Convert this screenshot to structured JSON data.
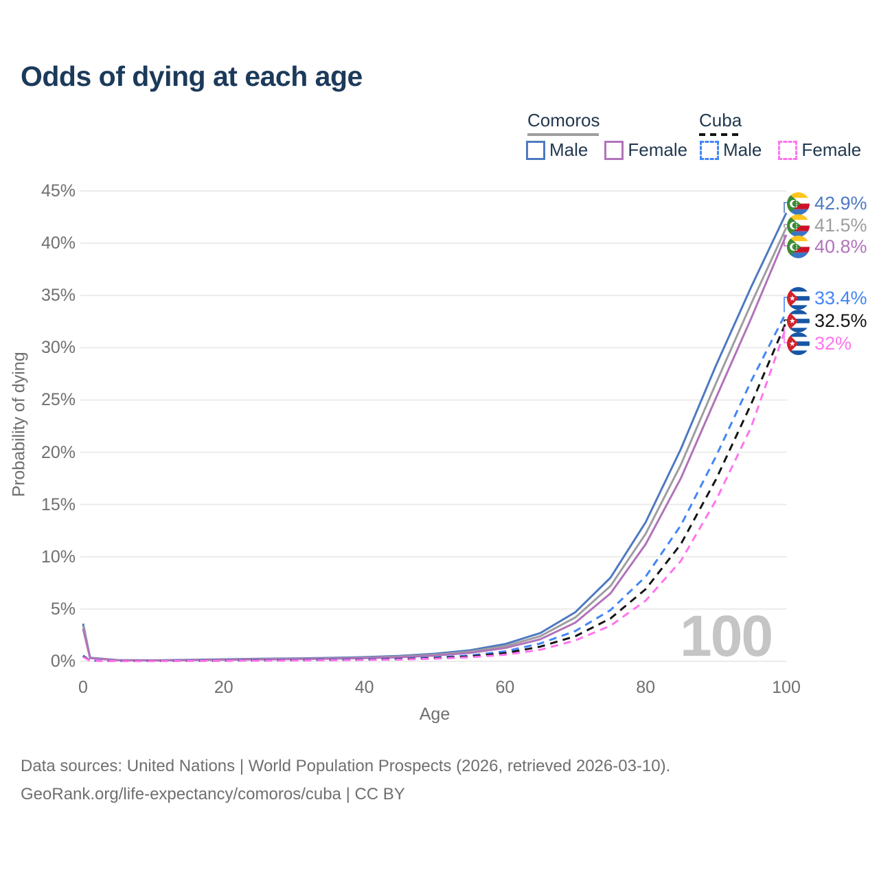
{
  "page": {
    "title": "Odds of dying at each age"
  },
  "legend": {
    "groups": [
      {
        "label": "Comoros",
        "line_style": "solid",
        "line_color": "#9e9e9e",
        "items": [
          {
            "label": "Male",
            "color": "#4d79c1"
          },
          {
            "label": "Female",
            "color": "#b173b9"
          }
        ]
      },
      {
        "label": "Cuba",
        "line_style": "dashed",
        "line_color": "#141414",
        "items": [
          {
            "label": "Male",
            "color": "#4286f5"
          },
          {
            "label": "Female",
            "color": "#ff74ee"
          }
        ]
      }
    ]
  },
  "chart_data": {
    "type": "line",
    "title": "Odds of dying at each age",
    "xlabel": "Age",
    "ylabel": "Probability of dying",
    "xlim": [
      0,
      100
    ],
    "ylim_pct": [
      0,
      45
    ],
    "x_ticks": [
      0,
      20,
      40,
      60,
      80,
      100
    ],
    "y_ticks": [
      "0%",
      "5%",
      "10%",
      "15%",
      "20%",
      "25%",
      "30%",
      "35%",
      "40%",
      "45%"
    ],
    "grid": "horizontal",
    "legend_position": "top-right",
    "watermark": "100",
    "series": [
      {
        "name": "Comoros Male",
        "country": "Comoros",
        "sex": "male",
        "color": "#4d79c1",
        "dash": "solid",
        "points": [
          [
            0,
            3.6
          ],
          [
            1,
            0.35
          ],
          [
            5,
            0.12
          ],
          [
            10,
            0.1
          ],
          [
            15,
            0.14
          ],
          [
            20,
            0.2
          ],
          [
            25,
            0.24
          ],
          [
            30,
            0.28
          ],
          [
            35,
            0.33
          ],
          [
            40,
            0.4
          ],
          [
            45,
            0.52
          ],
          [
            50,
            0.72
          ],
          [
            55,
            1.05
          ],
          [
            60,
            1.65
          ],
          [
            65,
            2.7
          ],
          [
            70,
            4.7
          ],
          [
            75,
            8.0
          ],
          [
            80,
            13.3
          ],
          [
            85,
            20.3
          ],
          [
            90,
            28.3
          ],
          [
            95,
            35.8
          ],
          [
            100,
            42.9
          ]
        ]
      },
      {
        "name": "Comoros Both sexes",
        "country": "Comoros",
        "sex": "both",
        "color": "#9e9e9e",
        "dash": "solid",
        "points": [
          [
            0,
            3.4
          ],
          [
            1,
            0.32
          ],
          [
            5,
            0.11
          ],
          [
            10,
            0.09
          ],
          [
            15,
            0.12
          ],
          [
            20,
            0.17
          ],
          [
            25,
            0.21
          ],
          [
            30,
            0.24
          ],
          [
            35,
            0.28
          ],
          [
            40,
            0.35
          ],
          [
            45,
            0.45
          ],
          [
            50,
            0.63
          ],
          [
            55,
            0.92
          ],
          [
            60,
            1.45
          ],
          [
            65,
            2.4
          ],
          [
            70,
            4.2
          ],
          [
            75,
            7.2
          ],
          [
            80,
            12.2
          ],
          [
            85,
            18.8
          ],
          [
            90,
            26.6
          ],
          [
            95,
            34.2
          ],
          [
            100,
            41.5
          ]
        ]
      },
      {
        "name": "Comoros Female",
        "country": "Comoros",
        "sex": "female",
        "color": "#b173b9",
        "dash": "solid",
        "points": [
          [
            0,
            3.1
          ],
          [
            1,
            0.3
          ],
          [
            5,
            0.1
          ],
          [
            10,
            0.08
          ],
          [
            15,
            0.11
          ],
          [
            20,
            0.15
          ],
          [
            25,
            0.18
          ],
          [
            30,
            0.21
          ],
          [
            35,
            0.24
          ],
          [
            40,
            0.3
          ],
          [
            45,
            0.39
          ],
          [
            50,
            0.55
          ],
          [
            55,
            0.8
          ],
          [
            60,
            1.27
          ],
          [
            65,
            2.1
          ],
          [
            70,
            3.7
          ],
          [
            75,
            6.5
          ],
          [
            80,
            11.2
          ],
          [
            85,
            17.5
          ],
          [
            90,
            25.2
          ],
          [
            95,
            32.8
          ],
          [
            100,
            40.8
          ]
        ]
      },
      {
        "name": "Cuba Male",
        "country": "Cuba",
        "sex": "male",
        "color": "#4286f5",
        "dash": "dashed",
        "points": [
          [
            0,
            0.55
          ],
          [
            1,
            0.05
          ],
          [
            5,
            0.03
          ],
          [
            10,
            0.03
          ],
          [
            15,
            0.05
          ],
          [
            20,
            0.08
          ],
          [
            25,
            0.1
          ],
          [
            30,
            0.12
          ],
          [
            35,
            0.15
          ],
          [
            40,
            0.19
          ],
          [
            45,
            0.25
          ],
          [
            50,
            0.36
          ],
          [
            55,
            0.55
          ],
          [
            60,
            0.95
          ],
          [
            65,
            1.7
          ],
          [
            70,
            2.9
          ],
          [
            75,
            4.9
          ],
          [
            80,
            8.1
          ],
          [
            85,
            13.0
          ],
          [
            90,
            19.6
          ],
          [
            95,
            26.8
          ],
          [
            100,
            33.4
          ]
        ]
      },
      {
        "name": "Cuba Both sexes",
        "country": "Cuba",
        "sex": "both",
        "color": "#141414",
        "dash": "dashed",
        "points": [
          [
            0,
            0.48
          ],
          [
            1,
            0.04
          ],
          [
            5,
            0.03
          ],
          [
            10,
            0.03
          ],
          [
            15,
            0.04
          ],
          [
            20,
            0.06
          ],
          [
            25,
            0.08
          ],
          [
            30,
            0.1
          ],
          [
            35,
            0.12
          ],
          [
            40,
            0.16
          ],
          [
            45,
            0.21
          ],
          [
            50,
            0.3
          ],
          [
            55,
            0.46
          ],
          [
            60,
            0.78
          ],
          [
            65,
            1.4
          ],
          [
            70,
            2.4
          ],
          [
            75,
            4.1
          ],
          [
            80,
            6.9
          ],
          [
            85,
            11.2
          ],
          [
            90,
            17.4
          ],
          [
            95,
            24.6
          ],
          [
            100,
            32.5
          ]
        ]
      },
      {
        "name": "Cuba Female",
        "country": "Cuba",
        "sex": "female",
        "color": "#ff74ee",
        "dash": "dashed",
        "points": [
          [
            0,
            0.42
          ],
          [
            1,
            0.04
          ],
          [
            5,
            0.02
          ],
          [
            10,
            0.02
          ],
          [
            15,
            0.03
          ],
          [
            20,
            0.05
          ],
          [
            25,
            0.06
          ],
          [
            30,
            0.08
          ],
          [
            35,
            0.1
          ],
          [
            40,
            0.13
          ],
          [
            45,
            0.17
          ],
          [
            50,
            0.25
          ],
          [
            55,
            0.38
          ],
          [
            60,
            0.63
          ],
          [
            65,
            1.1
          ],
          [
            70,
            2.0
          ],
          [
            75,
            3.4
          ],
          [
            80,
            5.8
          ],
          [
            85,
            9.6
          ],
          [
            90,
            15.4
          ],
          [
            95,
            22.4
          ],
          [
            100,
            32.0
          ]
        ]
      }
    ],
    "end_labels": [
      {
        "value": "42.9%",
        "series": "Comoros Male",
        "flag": "comoros",
        "color": "#4d79c1"
      },
      {
        "value": "41.5%",
        "series": "Comoros Both sexes",
        "flag": "comoros",
        "color": "#9e9e9e"
      },
      {
        "value": "40.8%",
        "series": "Comoros Female",
        "flag": "comoros",
        "color": "#b173b9"
      },
      {
        "value": "33.4%",
        "series": "Cuba Male",
        "flag": "cuba",
        "color": "#4286f5"
      },
      {
        "value": "32.5%",
        "series": "Cuba Both sexes",
        "flag": "cuba",
        "color": "#141414"
      },
      {
        "value": "32%",
        "series": "Cuba Female",
        "flag": "cuba",
        "color": "#ff74ee"
      }
    ]
  },
  "footer": {
    "line1": "Data sources: United Nations | World Population Prospects (2026, retrieved 2026-03-10).",
    "line2": "GeoRank.org/life-expectancy/comoros/cuba | CC BY"
  }
}
